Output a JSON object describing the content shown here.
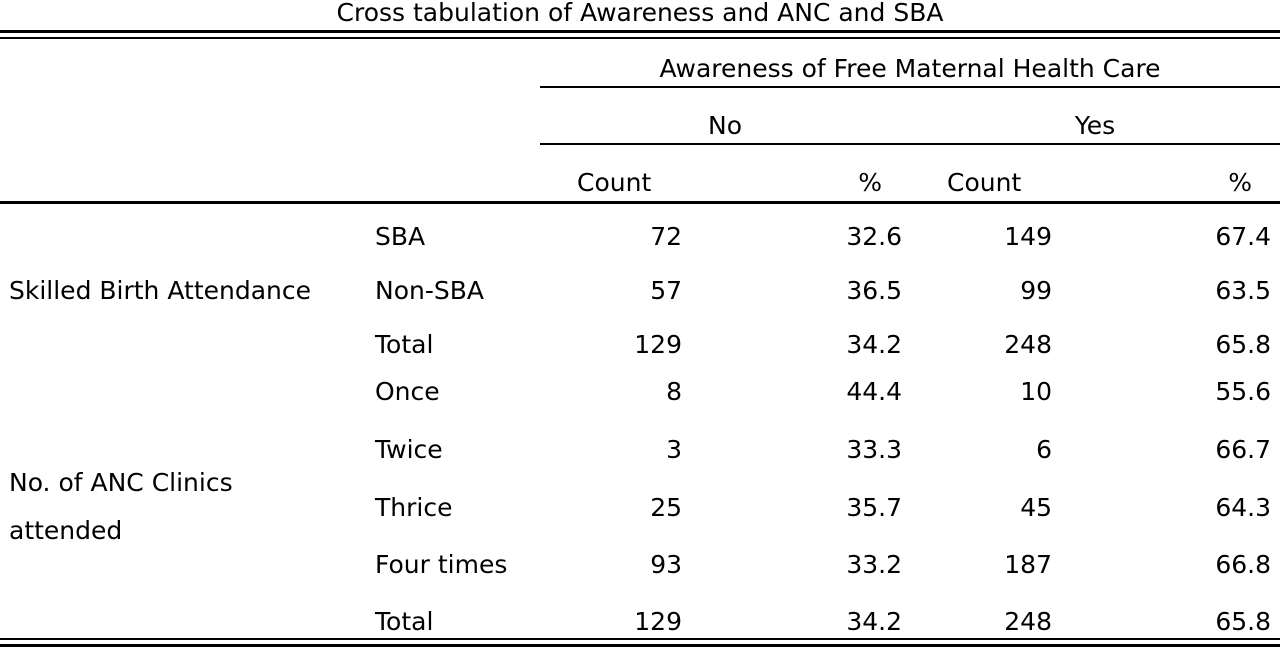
{
  "table": {
    "title": "Cross tabulation of Awareness and ANC and SBA",
    "super_header": "Awareness of Free Maternal Health Care",
    "group_no": "No",
    "group_yes": "Yes",
    "col_count": "Count",
    "col_pct": "%",
    "sections": [
      {
        "label": "Skilled Birth Attendance",
        "rows": [
          {
            "label": "SBA",
            "no_count": "72",
            "no_pct": "32.6",
            "yes_count": "149",
            "yes_pct": "67.4"
          },
          {
            "label": "Non-SBA",
            "no_count": "57",
            "no_pct": "36.5",
            "yes_count": "99",
            "yes_pct": "63.5"
          },
          {
            "label": "Total",
            "no_count": "129",
            "no_pct": "34.2",
            "yes_count": "248",
            "yes_pct": "65.8"
          }
        ]
      },
      {
        "label_line1": "No. of ANC Clinics",
        "label_line2": "attended",
        "rows": [
          {
            "label": "Once",
            "no_count": "8",
            "no_pct": "44.4",
            "yes_count": "10",
            "yes_pct": "55.6"
          },
          {
            "label": "Twice",
            "no_count": "3",
            "no_pct": "33.3",
            "yes_count": "6",
            "yes_pct": "66.7"
          },
          {
            "label": "Thrice",
            "no_count": "25",
            "no_pct": "35.7",
            "yes_count": "45",
            "yes_pct": "64.3"
          },
          {
            "label": "Four times",
            "no_count": "93",
            "no_pct": "33.2",
            "yes_count": "187",
            "yes_pct": "66.8"
          },
          {
            "label": "Total",
            "no_count": "129",
            "no_pct": "34.2",
            "yes_count": "248",
            "yes_pct": "65.8"
          }
        ]
      }
    ]
  }
}
